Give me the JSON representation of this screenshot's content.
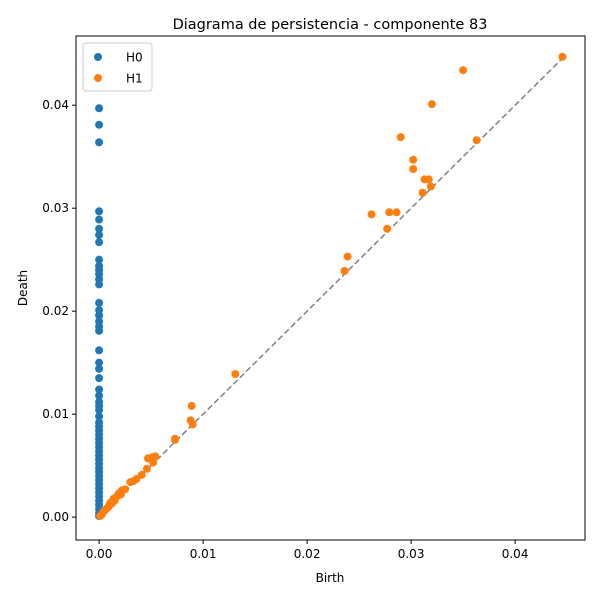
{
  "chart_data": {
    "type": "scatter",
    "title": "Diagrama de persistencia - componente 83",
    "xlabel": "Birth",
    "ylabel": "Death",
    "xlim": [
      -0.00222,
      0.04672
    ],
    "ylim": [
      -0.00222,
      0.04672
    ],
    "xticks": [
      0.0,
      0.01,
      0.02,
      0.03,
      0.04
    ],
    "xtick_labels": [
      "0.00",
      "0.01",
      "0.02",
      "0.03",
      "0.04"
    ],
    "yticks": [
      0.0,
      0.01,
      0.02,
      0.03,
      0.04
    ],
    "ytick_labels": [
      "0.00",
      "0.01",
      "0.02",
      "0.03",
      "0.04"
    ],
    "diagonal": {
      "from": [
        0.0,
        0.0
      ],
      "to": [
        0.04455,
        0.04455
      ],
      "color": "#808080",
      "style": "dashed"
    },
    "legend_position": "top-left",
    "series": [
      {
        "name": "H0",
        "color": "#1f77b4",
        "points": [
          [
            0,
            0.0397
          ],
          [
            0,
            0.0381
          ],
          [
            0,
            0.0364
          ],
          [
            0,
            0.0297
          ],
          [
            0,
            0.0289
          ],
          [
            0,
            0.028
          ],
          [
            0,
            0.0274
          ],
          [
            0,
            0.0267
          ],
          [
            0,
            0.025
          ],
          [
            0,
            0.0244
          ],
          [
            0,
            0.024
          ],
          [
            0,
            0.0236
          ],
          [
            0,
            0.0231
          ],
          [
            0,
            0.0226
          ],
          [
            0,
            0.0208
          ],
          [
            0,
            0.0201
          ],
          [
            0,
            0.0196
          ],
          [
            0,
            0.019
          ],
          [
            0,
            0.0185
          ],
          [
            0,
            0.0181
          ],
          [
            0,
            0.0162
          ],
          [
            0,
            0.015
          ],
          [
            0,
            0.0144
          ],
          [
            0,
            0.0135
          ],
          [
            0,
            0.0124
          ],
          [
            0,
            0.0118
          ],
          [
            0,
            0.0112
          ],
          [
            0,
            0.0108
          ],
          [
            0,
            0.0104
          ],
          [
            0,
            0.0098
          ],
          [
            0,
            0.0092
          ],
          [
            0,
            0.0088
          ],
          [
            0,
            0.0084
          ],
          [
            0,
            0.008
          ],
          [
            0,
            0.0076
          ],
          [
            0,
            0.0072
          ],
          [
            0,
            0.0068
          ],
          [
            0,
            0.0064
          ],
          [
            0,
            0.006
          ],
          [
            0,
            0.0056
          ],
          [
            0,
            0.0052
          ],
          [
            0,
            0.0048
          ],
          [
            0,
            0.0044
          ],
          [
            0,
            0.004
          ],
          [
            0,
            0.0036
          ],
          [
            0,
            0.0032
          ],
          [
            0,
            0.0028
          ],
          [
            0,
            0.0024
          ],
          [
            0,
            0.002
          ],
          [
            0,
            0.0016
          ],
          [
            0,
            0.0012
          ],
          [
            0,
            0.0008
          ],
          [
            0,
            0.0004
          ],
          [
            0,
            0.0001
          ]
        ]
      },
      {
        "name": "H1",
        "color": "#ff7f0e",
        "points": [
          [
            0.04455,
            0.0447
          ],
          [
            0.035,
            0.0434
          ],
          [
            0.032,
            0.0401
          ],
          [
            0.029,
            0.0369
          ],
          [
            0.0363,
            0.0366
          ],
          [
            0.0302,
            0.0347
          ],
          [
            0.0302,
            0.0338
          ],
          [
            0.0313,
            0.0328
          ],
          [
            0.0317,
            0.0328
          ],
          [
            0.0319,
            0.0321
          ],
          [
            0.0311,
            0.0315
          ],
          [
            0.0262,
            0.0294
          ],
          [
            0.0279,
            0.0296
          ],
          [
            0.0286,
            0.0296
          ],
          [
            0.0277,
            0.028
          ],
          [
            0.0239,
            0.0253
          ],
          [
            0.0236,
            0.0239
          ],
          [
            0.0131,
            0.0139
          ],
          [
            0.0089,
            0.0108
          ],
          [
            0.0088,
            0.0094
          ],
          [
            0.009,
            0.009
          ],
          [
            0.0073,
            0.0076
          ],
          [
            0.0073,
            0.0075
          ],
          [
            0.0047,
            0.0057
          ],
          [
            0.0051,
            0.0058
          ],
          [
            0.0054,
            0.0059
          ],
          [
            0.0052,
            0.0053
          ],
          [
            0.0046,
            0.0047
          ],
          [
            0.0041,
            0.0041
          ],
          [
            0.0036,
            0.0037
          ],
          [
            0.003,
            0.0034
          ],
          [
            0.0033,
            0.0035
          ],
          [
            0.0025,
            0.0027
          ],
          [
            0.0022,
            0.0026
          ],
          [
            0.0021,
            0.0022
          ],
          [
            0.0018,
            0.0021
          ],
          [
            0.0016,
            0.0019
          ],
          [
            0.0014,
            0.0018
          ],
          [
            0.0013,
            0.0015
          ],
          [
            0.0012,
            0.0013
          ],
          [
            0.001,
            0.0012
          ],
          [
            0.0009,
            0.001
          ],
          [
            0.0007,
            0.0008
          ],
          [
            0.0005,
            0.0006
          ],
          [
            0.0004,
            0.0005
          ],
          [
            0.0003,
            0.0003
          ],
          [
            0.0002,
            0.0002
          ],
          [
            0.0001,
            0.0001
          ],
          [
            0.0019,
            0.0023
          ],
          [
            0.0015,
            0.0016
          ],
          [
            0.0011,
            0.0014
          ],
          [
            0.0008,
            0.0009
          ]
        ]
      }
    ]
  }
}
